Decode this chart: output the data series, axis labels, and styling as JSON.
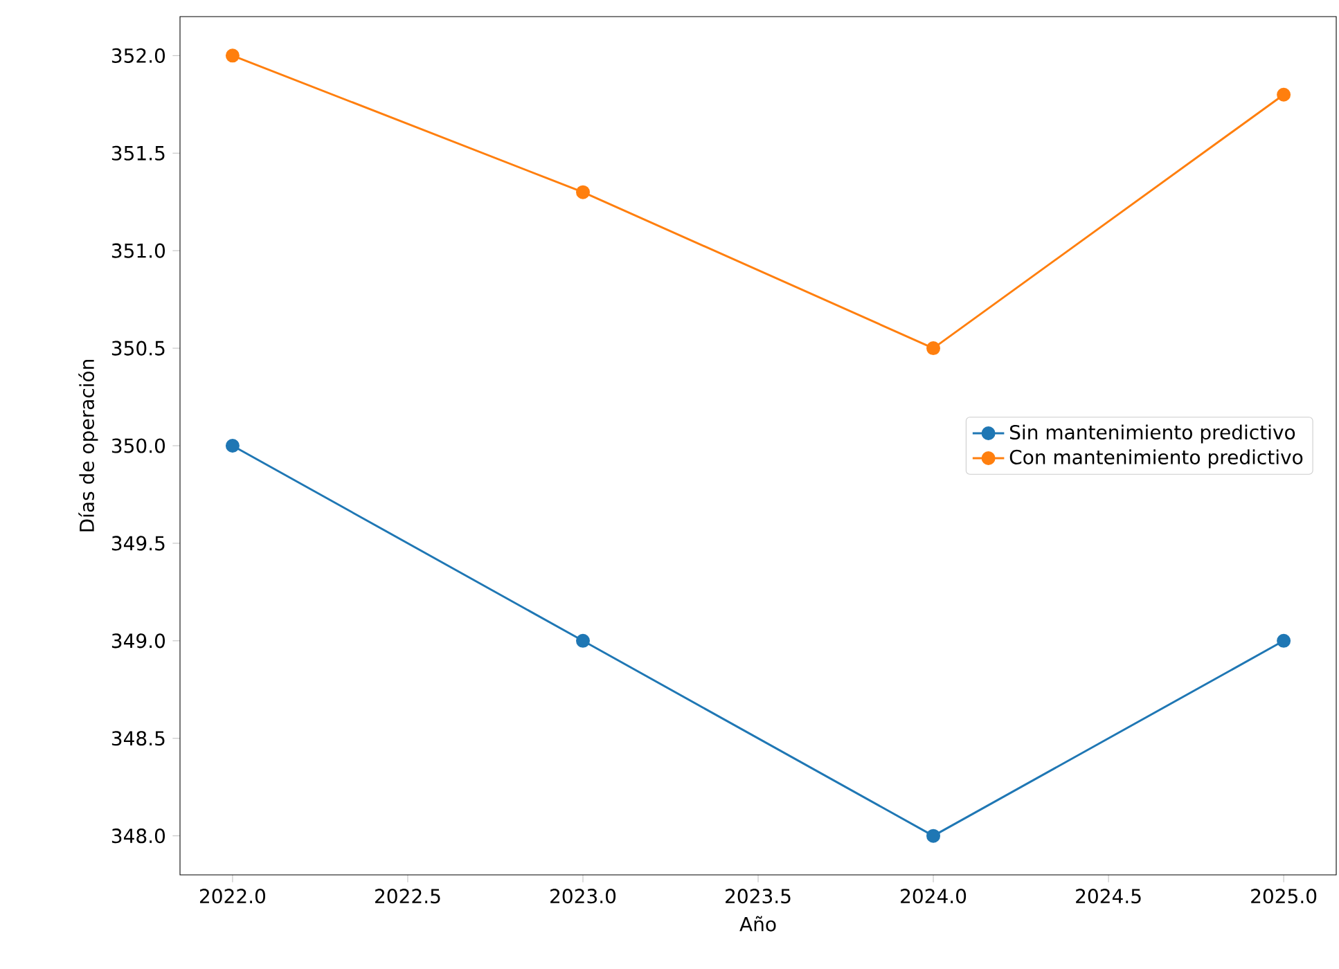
{
  "chart_data": {
    "type": "line",
    "xlabel": "Año",
    "ylabel": "Días de operación",
    "x": [
      2022,
      2023,
      2024,
      2025
    ],
    "series": [
      {
        "name": "Sin mantenimiento predictivo",
        "color": "#1f77b4",
        "values": [
          350,
          349,
          348,
          349
        ]
      },
      {
        "name": "Con mantenimiento predictivo",
        "color": "#ff7f0e",
        "values": [
          352,
          351.3,
          350.5,
          351.8
        ]
      }
    ],
    "xlim": [
      2021.85,
      2025.15
    ],
    "ylim": [
      347.8,
      352.2
    ],
    "xticks": [
      {
        "value": 2022,
        "label": "2022.0"
      },
      {
        "value": 2022.5,
        "label": "2022.5"
      },
      {
        "value": 2023,
        "label": "2023.0"
      },
      {
        "value": 2023.5,
        "label": "2023.5"
      },
      {
        "value": 2024,
        "label": "2024.0"
      },
      {
        "value": 2024.5,
        "label": "2024.5"
      },
      {
        "value": 2025,
        "label": "2025.0"
      }
    ],
    "yticks": [
      {
        "value": 348,
        "label": "348.0"
      },
      {
        "value": 348.5,
        "label": "348.5"
      },
      {
        "value": 349,
        "label": "349.0"
      },
      {
        "value": 349.5,
        "label": "349.5"
      },
      {
        "value": 350,
        "label": "350.0"
      },
      {
        "value": 350.5,
        "label": "350.5"
      },
      {
        "value": 351,
        "label": "351.0"
      },
      {
        "value": 351.5,
        "label": "351.5"
      },
      {
        "value": 352,
        "label": "352.0"
      }
    ],
    "legend": "center right",
    "marker": "circle",
    "line_style": "solid"
  }
}
